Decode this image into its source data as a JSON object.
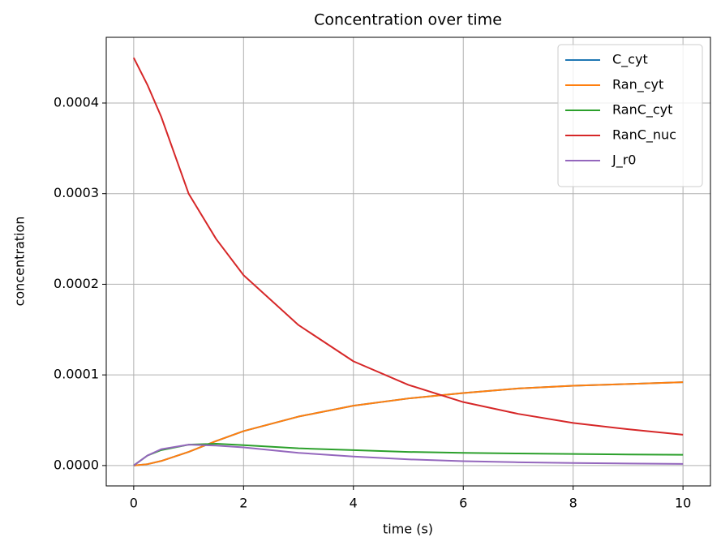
{
  "chart_data": {
    "type": "line",
    "title": "Concentration over time",
    "xlabel": "time (s)",
    "ylabel": "concentration",
    "x": [
      0,
      0.25,
      0.5,
      1,
      1.5,
      2,
      3,
      4,
      5,
      6,
      7,
      8,
      9,
      10
    ],
    "series": [
      {
        "name": "C_cyt",
        "color": "#1f77b4",
        "values": [
          0,
          1.5e-06,
          5e-06,
          1.5e-05,
          2.7e-05,
          3.8e-05,
          5.4e-05,
          6.6e-05,
          7.4e-05,
          8e-05,
          8.5e-05,
          8.8e-05,
          9e-05,
          9.2e-05
        ]
      },
      {
        "name": "Ran_cyt",
        "color": "#ff7f0e",
        "values": [
          0,
          1.5e-06,
          5e-06,
          1.5e-05,
          2.7e-05,
          3.8e-05,
          5.4e-05,
          6.6e-05,
          7.4e-05,
          8e-05,
          8.5e-05,
          8.8e-05,
          9e-05,
          9.2e-05
        ]
      },
      {
        "name": "RanC_cyt",
        "color": "#2ca02c",
        "values": [
          0,
          1.1e-05,
          1.7e-05,
          2.3e-05,
          2.4e-05,
          2.25e-05,
          1.9e-05,
          1.7e-05,
          1.5e-05,
          1.4e-05,
          1.33e-05,
          1.27e-05,
          1.22e-05,
          1.18e-05
        ]
      },
      {
        "name": "RanC_nuc",
        "color": "#d62728",
        "values": [
          0.00045,
          0.00042,
          0.000385,
          0.0003,
          0.00025,
          0.00021,
          0.000155,
          0.000115,
          8.9e-05,
          7e-05,
          5.7e-05,
          4.7e-05,
          4e-05,
          3.4e-05
        ]
      },
      {
        "name": "J_r0",
        "color": "#9467bd",
        "values": [
          0,
          1.1e-05,
          1.8e-05,
          2.3e-05,
          2.2e-05,
          2e-05,
          1.4e-05,
          1e-05,
          6.8e-06,
          4.8e-06,
          3.6e-06,
          2.8e-06,
          2.2e-06,
          1.8e-06
        ]
      }
    ],
    "xlim": [
      -0.5,
      10.5
    ],
    "ylim": [
      -2.25e-05,
      0.0004725
    ],
    "xticks": [
      0,
      2,
      4,
      6,
      8,
      10
    ],
    "yticks": [
      {
        "value": 0,
        "label": "0.0000"
      },
      {
        "value": 0.0001,
        "label": "0.0001"
      },
      {
        "value": 0.0002,
        "label": "0.0002"
      },
      {
        "value": 0.0003,
        "label": "0.0003"
      },
      {
        "value": 0.0004,
        "label": "0.0004"
      }
    ],
    "grid": true,
    "legend": "upper right"
  }
}
